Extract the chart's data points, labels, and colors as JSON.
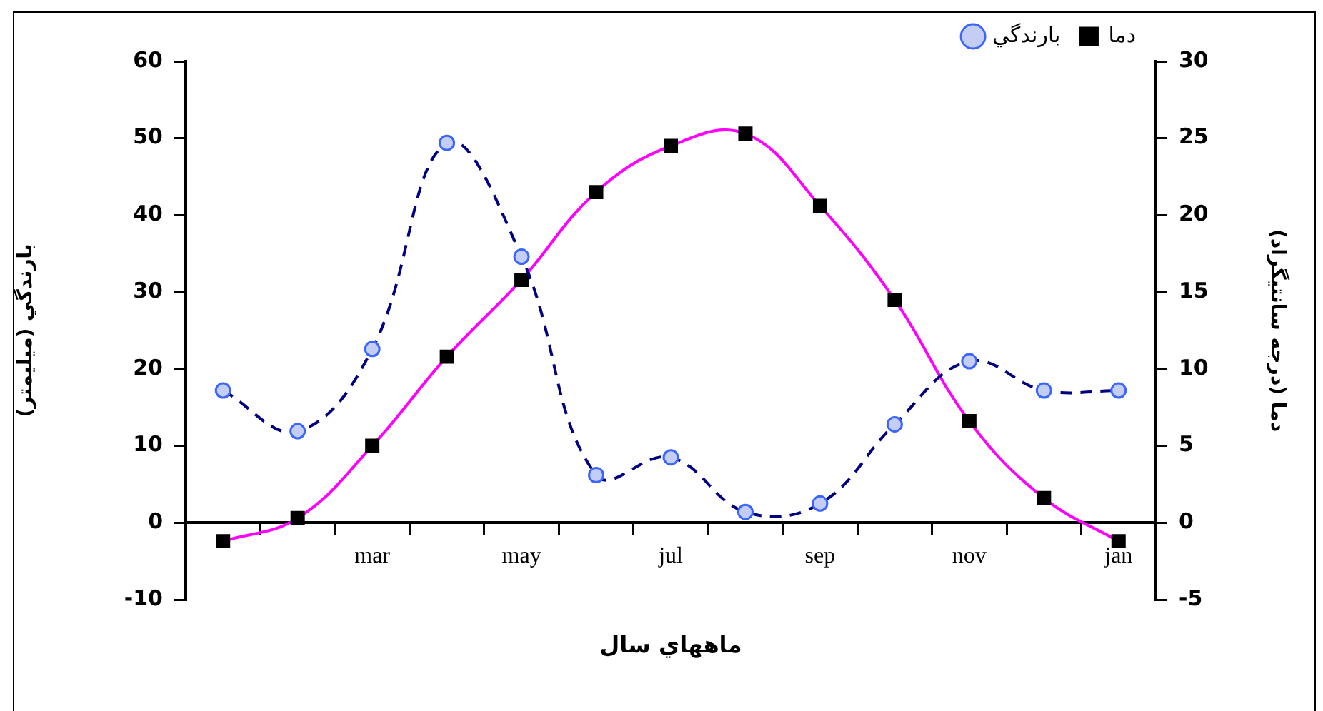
{
  "chart_data": {
    "type": "line",
    "xlabel": "ماههاي سال",
    "ylabel": "بارندگي (ميليمتر)",
    "y2label": "دما (درجه سانتيگراد)",
    "categories": [
      null,
      null,
      "mar",
      null,
      "may",
      null,
      "jul",
      null,
      "sep",
      null,
      "nov",
      null,
      "jan"
    ],
    "ylim": [
      -10,
      60
    ],
    "yticks": [
      -10,
      0,
      10,
      20,
      30,
      40,
      50,
      60
    ],
    "y2lim": [
      -5,
      30
    ],
    "y2ticks": [
      -5,
      0,
      5,
      10,
      15,
      20,
      25,
      30
    ],
    "grid": false,
    "legend": "top right",
    "series": [
      {
        "name": "بارندگي",
        "color": "#000080",
        "marker": "circle",
        "line_style": "dashed",
        "values": [
          17.2,
          11.9,
          22.6,
          49.4,
          34.6,
          6.2,
          8.5,
          1.4,
          2.5,
          12.8,
          21,
          17.2,
          17.2
        ]
      },
      {
        "name": "دما",
        "color": "#ff00ff",
        "marker": "square",
        "line_style": "solid",
        "axis": "y2",
        "values": [
          -1.2,
          0.3,
          5.0,
          10.8,
          15.8,
          21.5,
          24.5,
          25.3,
          20.6,
          14.5,
          6.6,
          1.6,
          -1.2
        ]
      }
    ]
  }
}
